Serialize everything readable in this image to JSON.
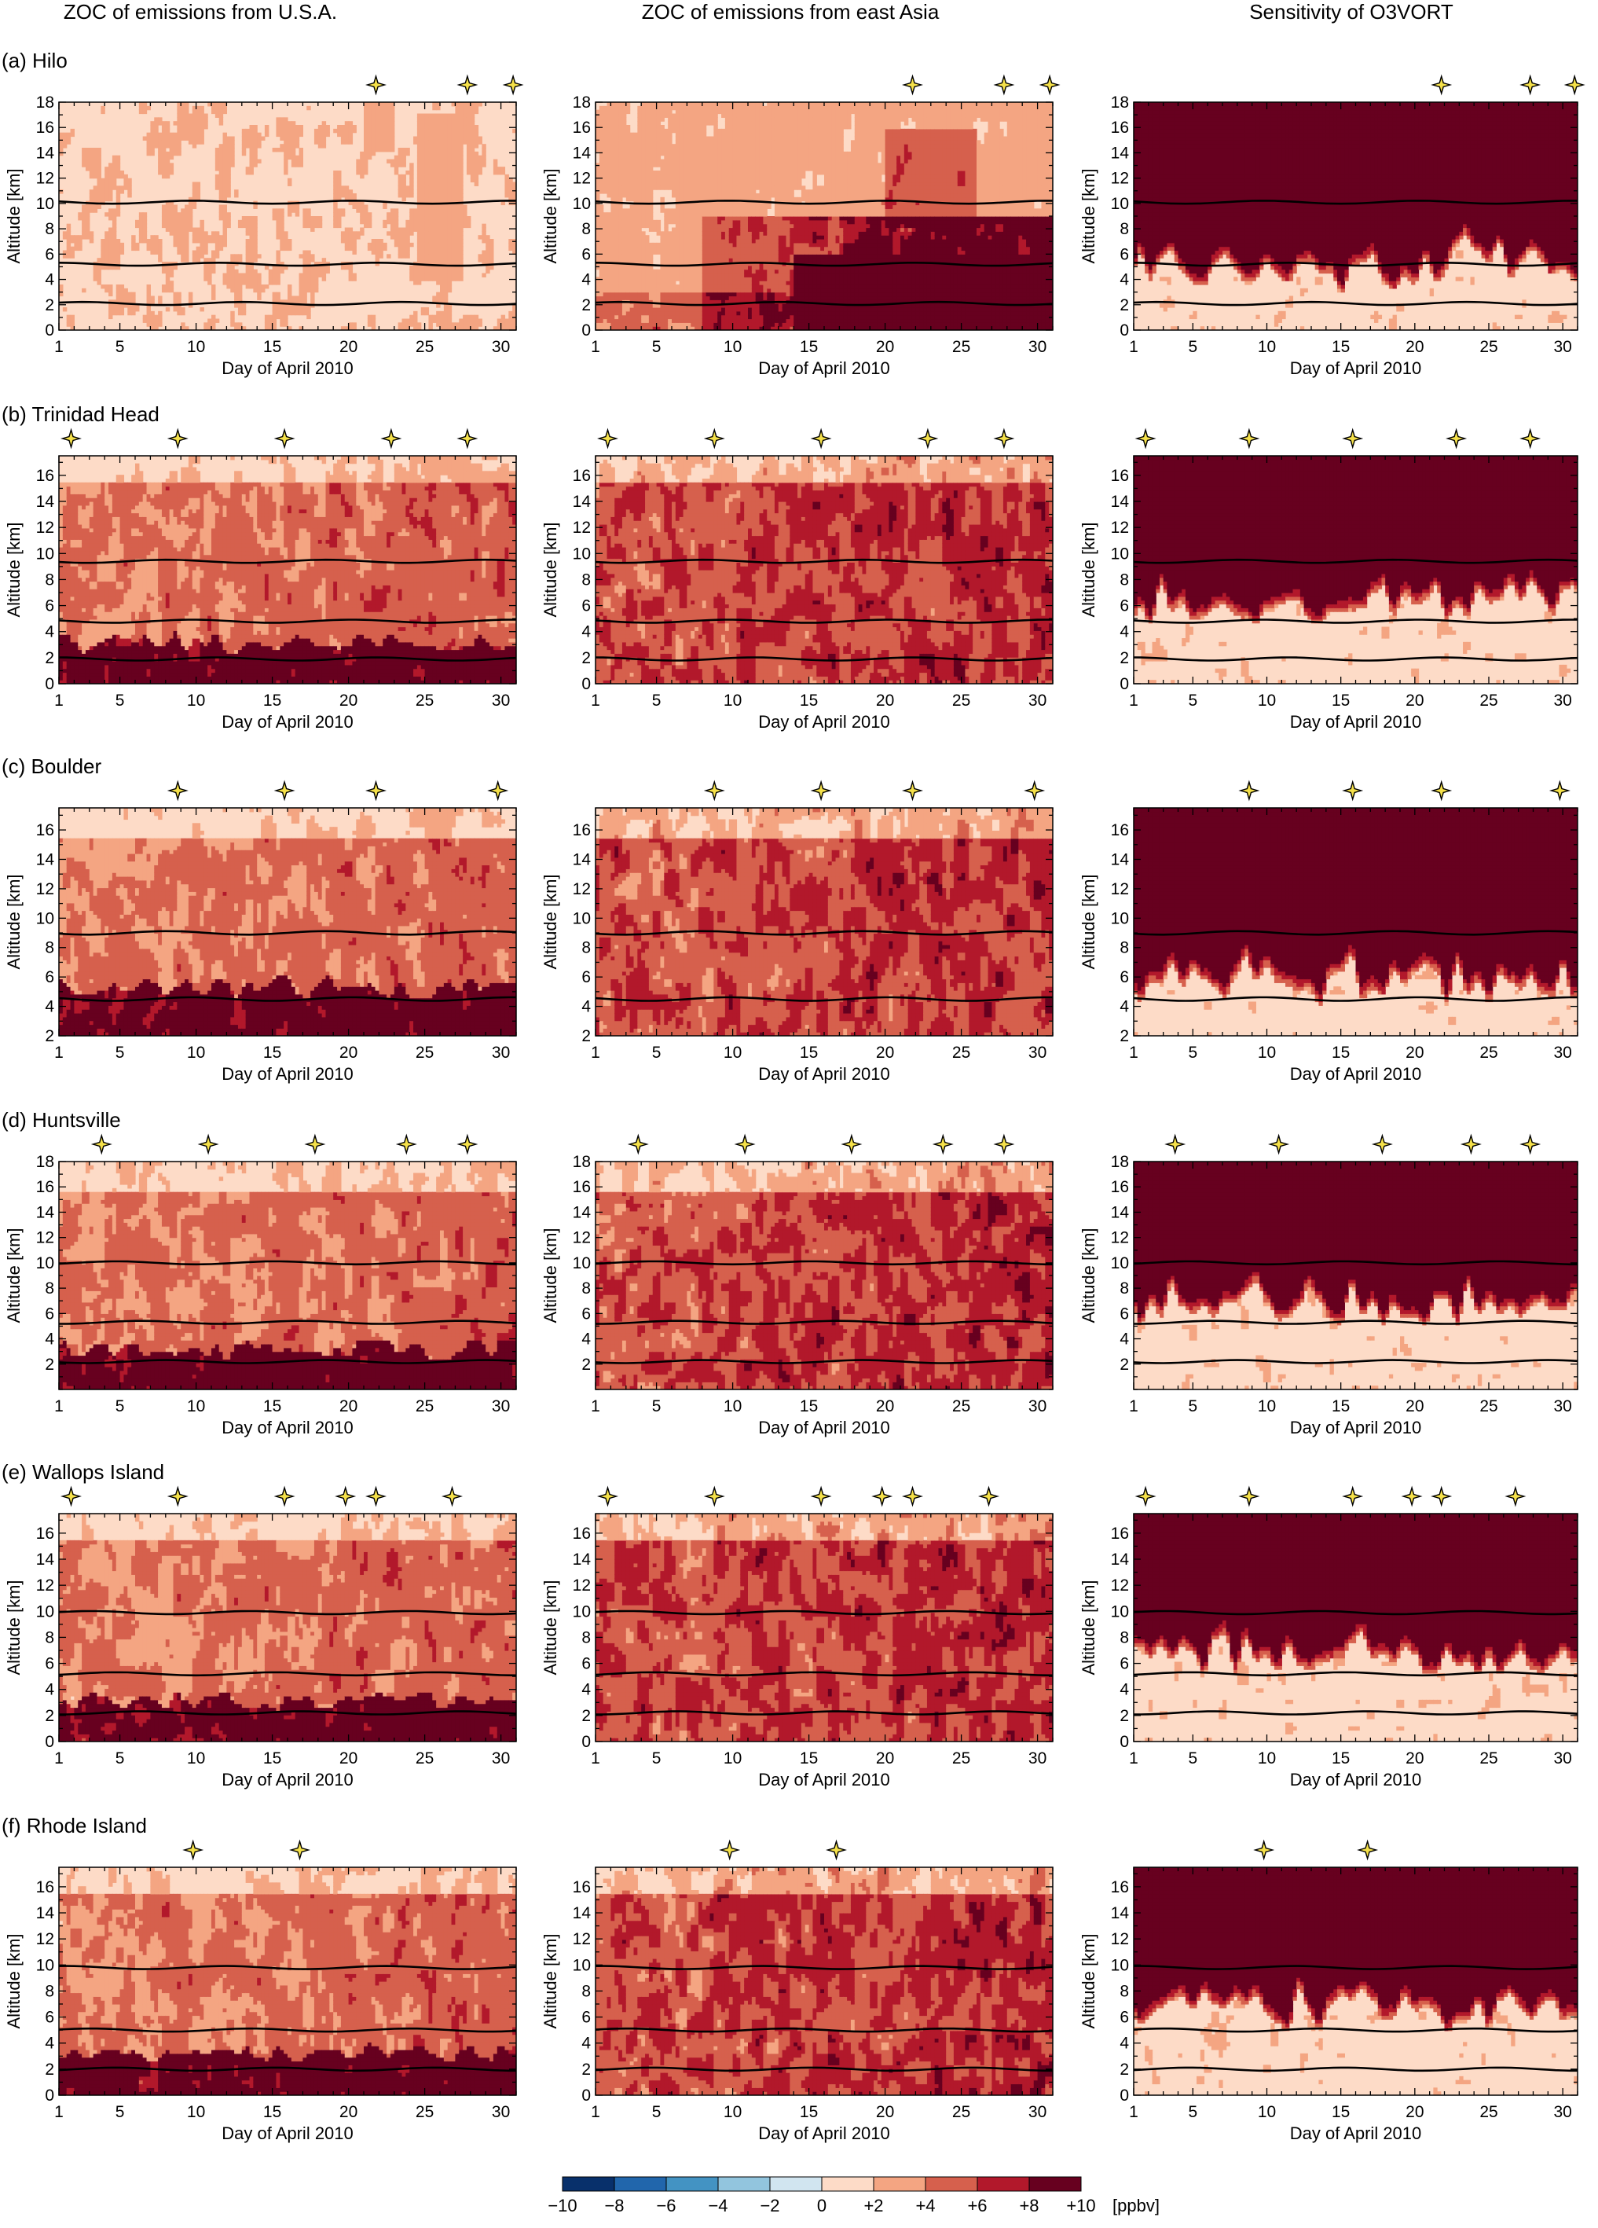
{
  "figure": {
    "column_titles": [
      "ZOC of emissions from U.S.A.",
      "ZOC of emissions from east Asia",
      "Sensitivity of O3VORT"
    ],
    "xlabel": "Day of April 2010",
    "ylabel": "Altitude [km]"
  },
  "colorbar": {
    "colors": [
      "#08306b",
      "#2166ac",
      "#4393c3",
      "#92c5de",
      "#d1e5f0",
      "#fddbc7",
      "#f4a582",
      "#d6604d",
      "#b2182b",
      "#67001f"
    ],
    "tick_labels": [
      "−10",
      "−8",
      "−6",
      "−4",
      "−2",
      "0",
      "+2",
      "+4",
      "+6",
      "+8",
      "+10"
    ],
    "unit": "[ppbv]"
  },
  "chart_data": [
    {
      "type": "heatmap",
      "site": "(a) Hilo",
      "xlim": [
        1,
        31
      ],
      "ylim": [
        0,
        18
      ],
      "x_ticks": [
        1,
        5,
        10,
        15,
        20,
        25,
        30
      ],
      "y_ticks": [
        0,
        2,
        4,
        6,
        8,
        10,
        12,
        14,
        16,
        18
      ],
      "marker_days": [
        21.8,
        27.8,
        30.8
      ],
      "reference_lines_km": [
        2.1,
        5.2,
        10.1
      ],
      "zoc_usa_level": "mostly 0 to +2, patches +2 to +4",
      "zoc_east_asia_level": "+4 to above +10 below 8 km from day 10",
      "o3vort_level": "above +10 above about 6-10 km"
    },
    {
      "type": "heatmap",
      "site": "(b) Trinidad Head",
      "xlim": [
        1,
        31
      ],
      "ylim": [
        0,
        17.5
      ],
      "x_ticks": [
        1,
        5,
        10,
        15,
        20,
        25,
        30
      ],
      "y_ticks": [
        0,
        2,
        4,
        6,
        8,
        10,
        12,
        14,
        16
      ],
      "marker_days": [
        1.8,
        8.8,
        15.8,
        22.8,
        27.8
      ],
      "reference_lines_km": [
        1.9,
        4.8,
        9.4
      ]
    },
    {
      "type": "heatmap",
      "site": "(c) Boulder",
      "xlim": [
        1,
        31
      ],
      "ylim": [
        2,
        17.5
      ],
      "x_ticks": [
        1,
        5,
        10,
        15,
        20,
        25,
        30
      ],
      "y_ticks": [
        2,
        4,
        6,
        8,
        10,
        12,
        14,
        16
      ],
      "marker_days": [
        8.8,
        15.8,
        21.8,
        29.8
      ],
      "reference_lines_km": [
        4.5,
        9.0
      ]
    },
    {
      "type": "heatmap",
      "site": "(d) Huntsville",
      "xlim": [
        1,
        31
      ],
      "ylim": [
        0,
        18
      ],
      "x_ticks": [
        1,
        5,
        10,
        15,
        20,
        25,
        30
      ],
      "y_ticks": [
        2,
        4,
        6,
        8,
        10,
        12,
        14,
        16,
        18
      ],
      "marker_days": [
        3.8,
        10.8,
        17.8,
        23.8,
        27.8
      ],
      "reference_lines_km": [
        2.2,
        5.3,
        10.0
      ]
    },
    {
      "type": "heatmap",
      "site": "(e) Wallops Island",
      "xlim": [
        1,
        31
      ],
      "ylim": [
        0,
        17.5
      ],
      "x_ticks": [
        1,
        5,
        10,
        15,
        20,
        25,
        30
      ],
      "y_ticks": [
        0,
        2,
        4,
        6,
        8,
        10,
        12,
        14,
        16
      ],
      "marker_days": [
        1.8,
        8.8,
        15.8,
        19.8,
        21.8,
        26.8
      ],
      "reference_lines_km": [
        2.2,
        5.2,
        9.9
      ]
    },
    {
      "type": "heatmap",
      "site": "(f) Rhode Island",
      "xlim": [
        1,
        31
      ],
      "ylim": [
        0,
        17.5
      ],
      "x_ticks": [
        1,
        5,
        10,
        15,
        20,
        25,
        30
      ],
      "y_ticks": [
        0,
        2,
        4,
        6,
        8,
        10,
        12,
        14,
        16
      ],
      "marker_days": [
        9.8,
        16.8
      ],
      "reference_lines_km": [
        2.0,
        5.0,
        9.8
      ]
    }
  ]
}
